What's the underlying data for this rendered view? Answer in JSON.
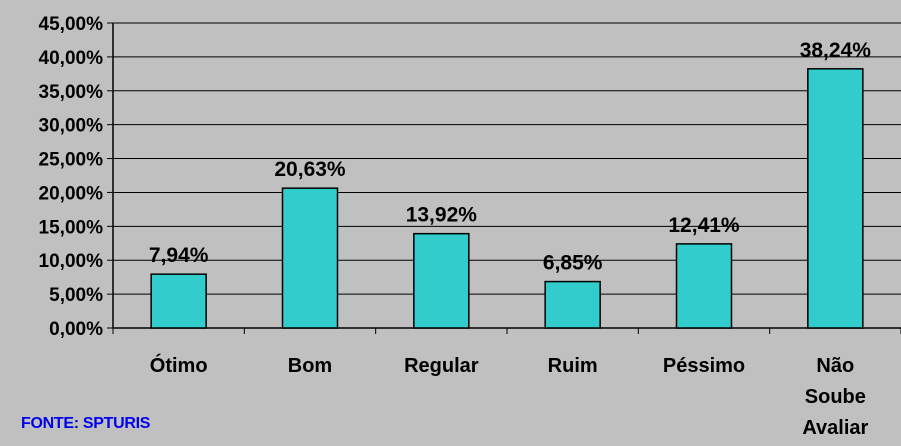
{
  "chart_data": {
    "type": "bar",
    "title": "",
    "xlabel": "",
    "ylabel": "",
    "categories": [
      "Ótimo",
      "Bom",
      "Regular",
      "Ruim",
      "Péssimo",
      "Não Soube Avaliar"
    ],
    "values": [
      7.94,
      20.63,
      13.92,
      6.85,
      12.41,
      38.24
    ],
    "data_labels": [
      "7,94%",
      "20,63%",
      "13,92%",
      "6,85%",
      "12,41%",
      "38,24%"
    ],
    "ylim": [
      0,
      45
    ],
    "yticks": [
      0,
      5,
      10,
      15,
      20,
      25,
      30,
      35,
      40,
      45
    ],
    "ytick_labels": [
      "0,00%",
      "5,00%",
      "10,00%",
      "15,00%",
      "20,00%",
      "25,00%",
      "30,00%",
      "35,00%",
      "40,00%",
      "45,00%"
    ],
    "grid": true,
    "legend": false,
    "colors": {
      "bar": "#33cccc",
      "bar_edge": "#000000",
      "plot_background": "#c0c0c0",
      "source_text": "#0000ee"
    }
  },
  "source_note": "FONTE: SPTURIS"
}
